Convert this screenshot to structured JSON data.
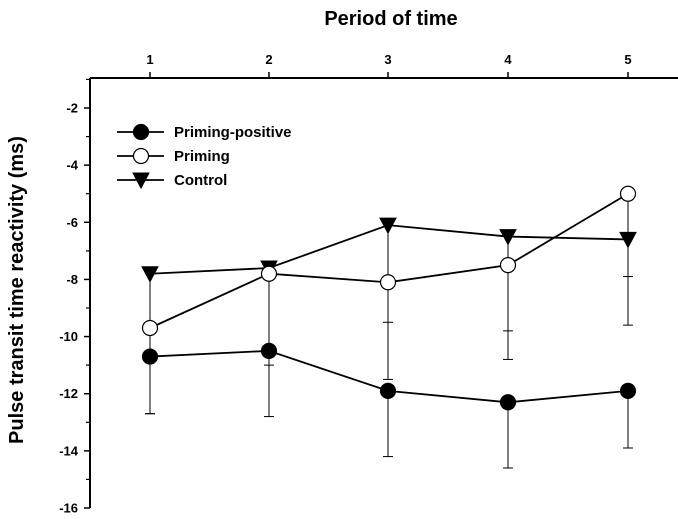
{
  "chart_data": {
    "type": "line",
    "title": "",
    "xlabel": "Period of time",
    "ylabel": "Pulse transit time reactivity (ms)",
    "x": [
      1,
      2,
      3,
      4,
      5
    ],
    "xlim": [
      0.5,
      5.5
    ],
    "ylim": [
      -16,
      -1
    ],
    "x_ticks": [
      "1",
      "2",
      "3",
      "4",
      "5"
    ],
    "y_ticks": [
      "-2",
      "-4",
      "-6",
      "-8",
      "-10",
      "-12",
      "-14",
      "-16"
    ],
    "x_axis_position": "top",
    "grid": false,
    "legend_position": "top-left",
    "series": [
      {
        "name": "Priming-positive",
        "marker": "filled-circle",
        "values": [
          -10.7,
          -10.5,
          -11.9,
          -12.3,
          -11.9
        ],
        "error_lower": [
          -12.7,
          -12.8,
          -14.2,
          -14.6,
          -13.9
        ],
        "error_upper": [
          null,
          null,
          null,
          null,
          null
        ]
      },
      {
        "name": "Priming",
        "marker": "open-circle",
        "values": [
          -9.7,
          -7.8,
          -8.1,
          -7.5,
          -5.0
        ],
        "error_lower": [
          null,
          null,
          -11.5,
          -10.8,
          -7.9
        ],
        "error_upper": [
          null,
          null,
          null,
          null,
          null
        ]
      },
      {
        "name": "Control",
        "marker": "filled-triangle-down",
        "values": [
          -7.8,
          -7.6,
          -6.1,
          -6.5,
          -6.6
        ],
        "error_lower": [
          -12.7,
          -11.0,
          -9.5,
          -9.8,
          -9.6
        ],
        "error_upper": [
          null,
          null,
          null,
          null,
          null
        ]
      }
    ]
  }
}
